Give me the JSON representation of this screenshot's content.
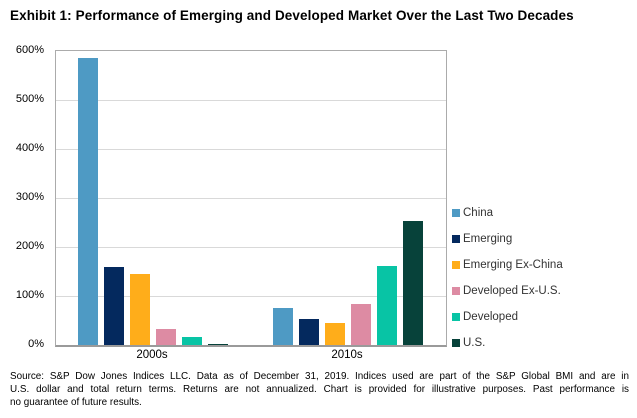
{
  "title": "Exhibit 1: Performance of Emerging and Developed Market Over the Last Two Decades",
  "chart_data": {
    "type": "bar",
    "categories": [
      "2000s",
      "2010s"
    ],
    "series": [
      {
        "name": "China",
        "color": "#4E9AC4",
        "values": [
          585,
          75
        ]
      },
      {
        "name": "Emerging",
        "color": "#04295E",
        "values": [
          160,
          53
        ]
      },
      {
        "name": "Emerging Ex-China",
        "color": "#FFAD1A",
        "values": [
          145,
          44
        ]
      },
      {
        "name": "Developed Ex-U.S.",
        "color": "#DD8BA3",
        "values": [
          32,
          84
        ]
      },
      {
        "name": "Developed",
        "color": "#08C4A5",
        "values": [
          17,
          161
        ]
      },
      {
        "name": "U.S.",
        "color": "#07423A",
        "values": [
          3,
          254
        ]
      }
    ],
    "title": "Exhibit 1: Performance of Emerging and Developed Market Over the Last Two Decades",
    "xlabel": "",
    "ylabel": "",
    "ylim": [
      0,
      600
    ],
    "yticks": [
      "600%",
      "500%",
      "400%",
      "300%",
      "200%",
      "100%",
      "0%"
    ],
    "ytick_values": [
      600,
      500,
      400,
      300,
      200,
      100,
      0
    ],
    "grid": true,
    "legend_position": "right"
  },
  "colors": {
    "gridline": "#d9d9d9",
    "plot_border": "#ababab",
    "axis_line": "#9a9a9a"
  },
  "footer": {
    "lines": [
      "Source: S&P Dow Jones Indices LLC. Data as of December 31, 2019. Indices used are part of the S&P Global BMI and are in",
      "U.S. dollar and total return terms. Returns are not annualized. Chart is provided for illustrative purposes. Past performance is",
      "no guarantee of future results."
    ]
  }
}
